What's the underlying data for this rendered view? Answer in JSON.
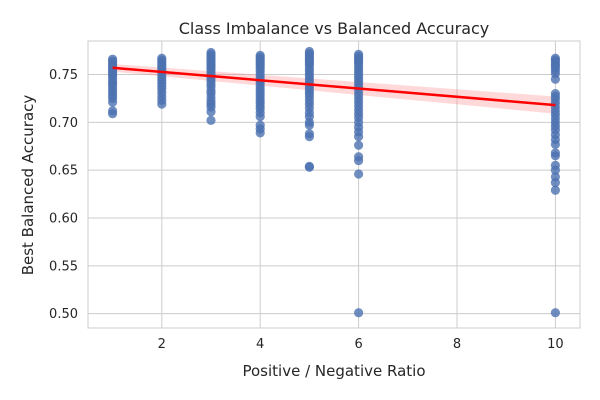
{
  "chart_data": {
    "type": "scatter",
    "title": "Class Imbalance vs Balanced Accuracy",
    "xlabel": "Positive / Negative Ratio",
    "ylabel": "Best Balanced Accuracy",
    "xlim": [
      0.5,
      10.5
    ],
    "ylim": [
      0.485,
      0.785
    ],
    "xticks": [
      2,
      4,
      6,
      8,
      10
    ],
    "yticks": [
      0.5,
      0.55,
      0.6,
      0.65,
      0.7,
      0.75
    ],
    "grid": true,
    "point_color": "#4c72b0",
    "regression": {
      "color": "#ff0000",
      "band_color": "#ff8080",
      "start": {
        "x": 1,
        "y": 0.757
      },
      "end": {
        "x": 10,
        "y": 0.718
      },
      "ci_halfwidth_start": 0.004,
      "ci_halfwidth_end": 0.009
    },
    "series": [
      {
        "x": 1,
        "values": [
          0.766,
          0.764,
          0.762,
          0.76,
          0.758,
          0.756,
          0.754,
          0.752,
          0.75,
          0.748,
          0.745,
          0.742,
          0.74,
          0.737,
          0.734,
          0.731,
          0.728,
          0.725,
          0.721,
          0.712,
          0.709
        ]
      },
      {
        "x": 2,
        "values": [
          0.767,
          0.765,
          0.763,
          0.761,
          0.759,
          0.757,
          0.755,
          0.753,
          0.75,
          0.747,
          0.744,
          0.741,
          0.738,
          0.735,
          0.731,
          0.727,
          0.723,
          0.719
        ]
      },
      {
        "x": 3,
        "values": [
          0.773,
          0.771,
          0.769,
          0.767,
          0.765,
          0.763,
          0.761,
          0.759,
          0.757,
          0.755,
          0.752,
          0.749,
          0.746,
          0.743,
          0.74,
          0.737,
          0.733,
          0.73,
          0.726,
          0.722,
          0.719,
          0.716,
          0.711,
          0.702
        ]
      },
      {
        "x": 4,
        "values": [
          0.77,
          0.768,
          0.766,
          0.764,
          0.762,
          0.76,
          0.758,
          0.756,
          0.753,
          0.75,
          0.747,
          0.744,
          0.741,
          0.738,
          0.735,
          0.732,
          0.729,
          0.726,
          0.723,
          0.72,
          0.717,
          0.714,
          0.71,
          0.706,
          0.697,
          0.693,
          0.689
        ]
      },
      {
        "x": 5,
        "values": [
          0.774,
          0.772,
          0.77,
          0.768,
          0.766,
          0.764,
          0.762,
          0.76,
          0.757,
          0.754,
          0.751,
          0.748,
          0.745,
          0.742,
          0.739,
          0.736,
          0.733,
          0.73,
          0.727,
          0.723,
          0.719,
          0.715,
          0.71,
          0.706,
          0.7,
          0.697,
          0.688,
          0.685,
          0.654,
          0.653
        ]
      },
      {
        "x": 6,
        "values": [
          0.771,
          0.769,
          0.767,
          0.765,
          0.763,
          0.761,
          0.758,
          0.755,
          0.752,
          0.749,
          0.746,
          0.743,
          0.74,
          0.737,
          0.733,
          0.729,
          0.725,
          0.721,
          0.717,
          0.713,
          0.709,
          0.705,
          0.7,
          0.695,
          0.69,
          0.685,
          0.676,
          0.664,
          0.66,
          0.646,
          0.501
        ]
      },
      {
        "x": 10,
        "values": [
          0.767,
          0.765,
          0.763,
          0.761,
          0.759,
          0.757,
          0.754,
          0.751,
          0.745,
          0.73,
          0.727,
          0.724,
          0.72,
          0.716,
          0.712,
          0.708,
          0.704,
          0.7,
          0.696,
          0.692,
          0.687,
          0.682,
          0.677,
          0.668,
          0.665,
          0.655,
          0.65,
          0.643,
          0.637,
          0.629,
          0.501
        ]
      }
    ]
  }
}
